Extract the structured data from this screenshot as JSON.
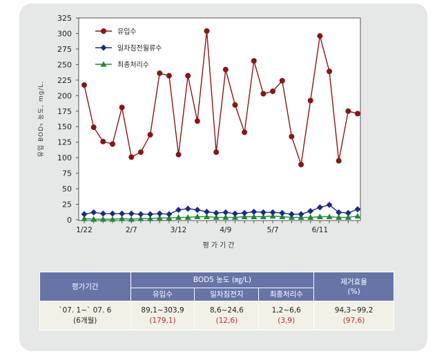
{
  "chart_data": {
    "type": "line",
    "title": "",
    "xlabel": "평가기간",
    "ylabel": "유입 BOD₅ 농도, mg/L.",
    "ylim": [
      0,
      325
    ],
    "yticks": [
      0,
      25,
      50,
      75,
      100,
      125,
      150,
      175,
      200,
      225,
      250,
      275,
      300,
      325
    ],
    "xtick_labels": [
      {
        "index": 0,
        "label": "1/22"
      },
      {
        "index": 5,
        "label": "2/7"
      },
      {
        "index": 10,
        "label": "3/12"
      },
      {
        "index": 15,
        "label": "4/9"
      },
      {
        "index": 20,
        "label": "5/7"
      },
      {
        "index": 25,
        "label": "6/11"
      }
    ],
    "legend_position": "top-left",
    "grid": false,
    "series": [
      {
        "name": "유입수",
        "color": "#8b1414",
        "marker": "circle",
        "values": [
          217,
          149,
          126,
          122,
          181,
          101,
          109,
          137,
          236,
          232,
          105,
          232,
          159,
          304,
          109,
          242,
          185,
          141,
          256,
          203,
          207,
          224,
          134,
          89,
          192,
          296,
          239,
          95,
          175,
          171
        ]
      },
      {
        "name": "일차침전월류수",
        "color": "#1c2a8a",
        "marker": "diamond",
        "values": [
          9,
          12,
          10,
          10,
          10,
          10,
          9,
          9,
          10,
          9,
          16,
          18,
          16,
          13,
          11,
          12,
          10,
          11,
          13,
          12,
          12,
          11,
          9,
          9,
          14,
          20,
          24,
          12,
          11,
          17
        ]
      },
      {
        "name": "최종처리수",
        "color": "#1a8a2e",
        "marker": "triangle",
        "values": [
          2,
          1,
          1,
          1,
          2,
          1,
          2,
          2,
          3,
          3,
          4,
          4,
          5,
          5,
          4,
          4,
          4,
          5,
          5,
          5,
          6,
          5,
          4,
          4,
          4,
          5,
          5,
          4,
          4,
          6
        ]
      }
    ]
  },
  "table": {
    "header_period": "평가기간",
    "header_bod": "BOD5 농도 (㎎/L)",
    "header_efficiency": "제거효율\n(%)",
    "sub_influent": "유입수",
    "sub_primary": "일차침전지",
    "sub_final": "최종처리수",
    "row_period": "`07. 1~` 07. 6\n(6개월)",
    "row_influent": "89,1~303,9",
    "row_influent_avg": "(179,1)",
    "row_primary": "8,6~24,6",
    "row_primary_avg": "(12,6)",
    "row_final": "1,2~6,6",
    "row_final_avg": "(3,9)",
    "row_efficiency": "94,3~99,2",
    "row_efficiency_avg": "(97,6)"
  }
}
